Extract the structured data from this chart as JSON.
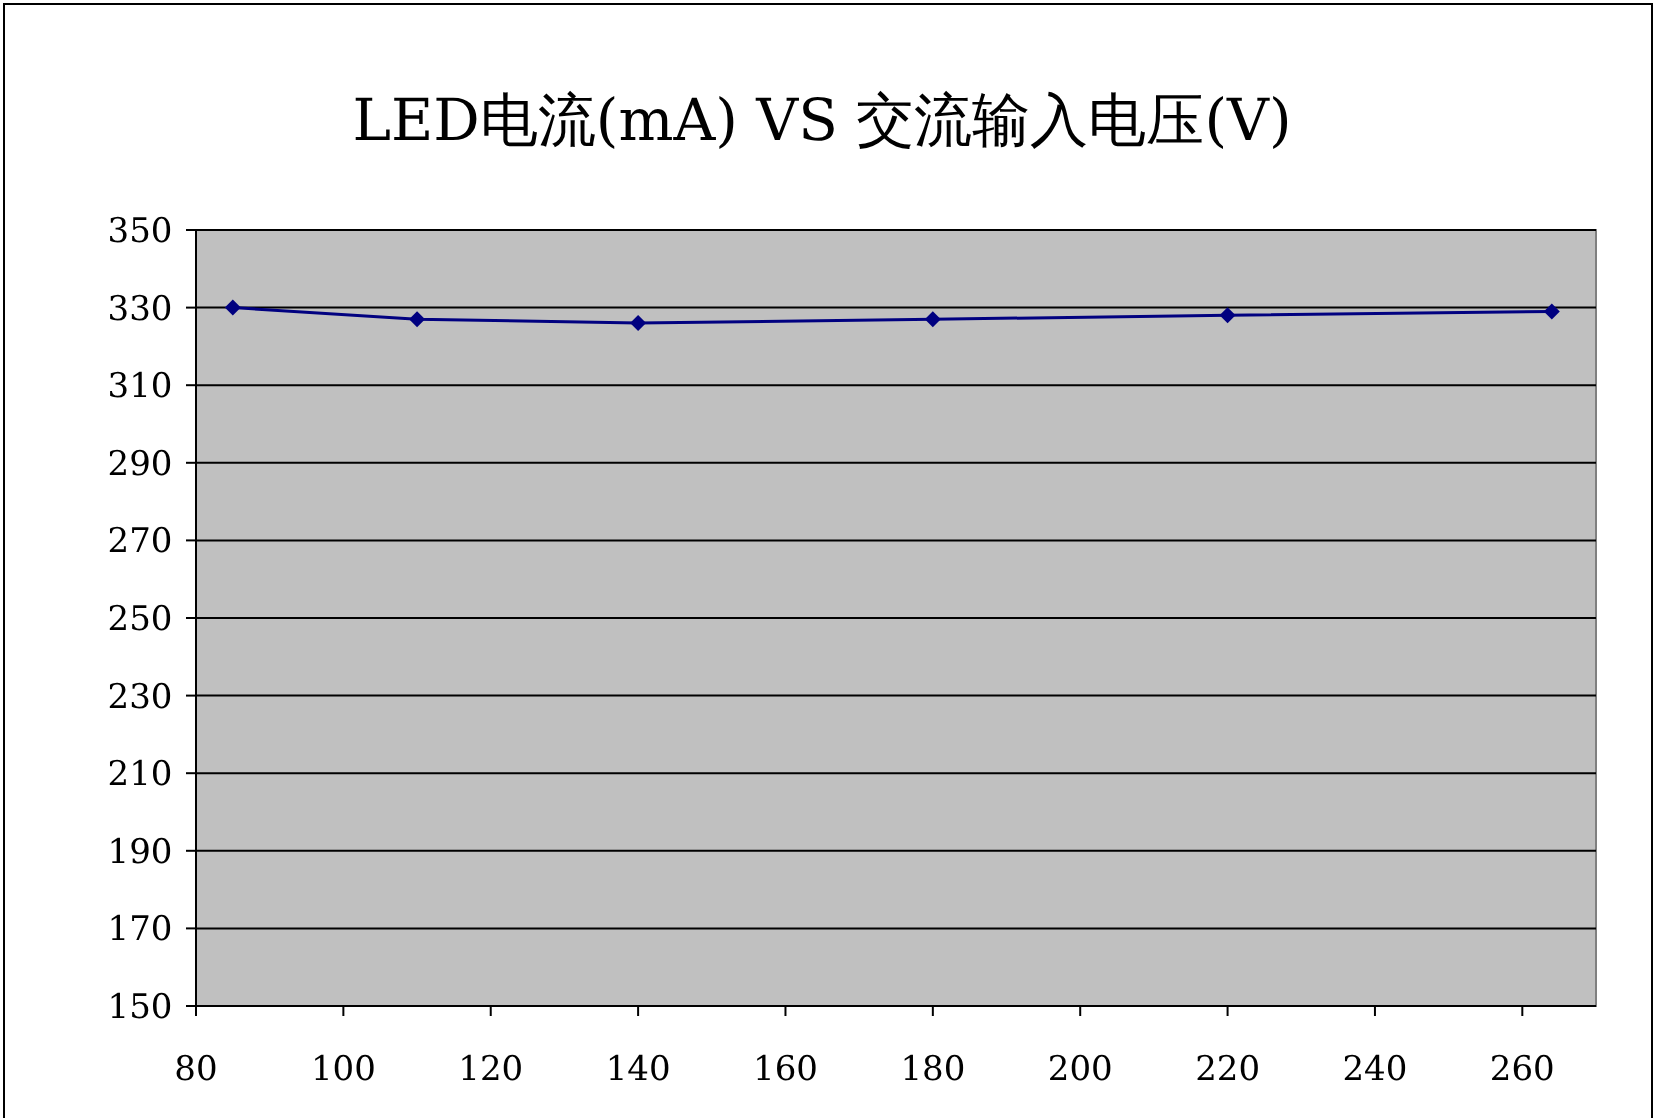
{
  "chart_data": {
    "type": "line",
    "title": "LED电流(mA) VS 交流输入电压(V)",
    "x": [
      85,
      110,
      140,
      180,
      220,
      264
    ],
    "series": [
      {
        "color": "#000080",
        "values": [
          330,
          327,
          326,
          327,
          328,
          329
        ]
      }
    ],
    "xlim": [
      80,
      270
    ],
    "xticks": [
      80,
      100,
      120,
      140,
      160,
      180,
      200,
      220,
      240,
      260
    ],
    "ylim": [
      150,
      350
    ],
    "yticks": [
      150,
      170,
      190,
      210,
      230,
      250,
      270,
      290,
      310,
      330,
      350
    ],
    "grid": "y",
    "marker": "diamond",
    "line_style": "solid"
  }
}
